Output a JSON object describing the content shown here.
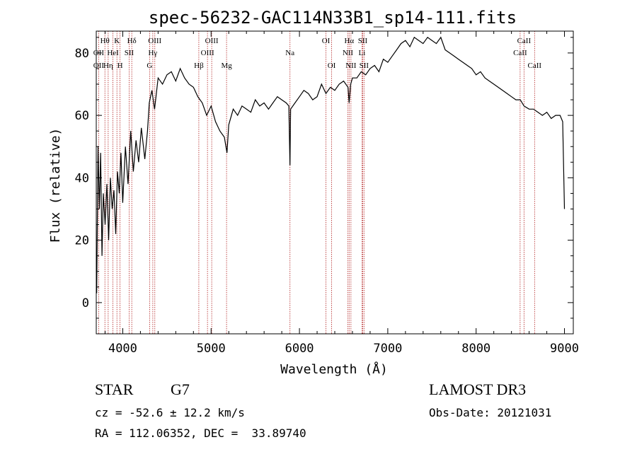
{
  "chart_data": {
    "type": "line",
    "title": "spec-56232-GAC114N33B1_sp14-111.fits",
    "xlabel": "Wavelength (Å)",
    "ylabel": "Flux (relative)",
    "xlim": [
      3700,
      9100
    ],
    "ylim": [
      -10,
      87
    ],
    "xticks": [
      4000,
      5000,
      6000,
      7000,
      8000,
      9000
    ],
    "yticks": [
      0,
      20,
      40,
      60,
      80
    ],
    "grid": false,
    "line_color": "#000000",
    "marker_color": "#b22222",
    "spectrum": {
      "x": [
        3705,
        3720,
        3735,
        3750,
        3765,
        3780,
        3800,
        3820,
        3840,
        3860,
        3880,
        3900,
        3920,
        3940,
        3960,
        3980,
        4000,
        4030,
        4060,
        4090,
        4120,
        4150,
        4180,
        4210,
        4250,
        4280,
        4300,
        4330,
        4360,
        4400,
        4450,
        4500,
        4550,
        4600,
        4650,
        4700,
        4750,
        4800,
        4850,
        4900,
        4950,
        5000,
        5050,
        5100,
        5150,
        5180,
        5200,
        5250,
        5300,
        5350,
        5400,
        5450,
        5500,
        5550,
        5600,
        5650,
        5700,
        5750,
        5800,
        5850,
        5880,
        5893,
        5900,
        5950,
        6000,
        6050,
        6100,
        6150,
        6200,
        6250,
        6300,
        6350,
        6400,
        6450,
        6500,
        6550,
        6563,
        6580,
        6600,
        6650,
        6700,
        6750,
        6800,
        6850,
        6900,
        6950,
        7000,
        7050,
        7100,
        7150,
        7200,
        7250,
        7300,
        7350,
        7400,
        7450,
        7500,
        7550,
        7600,
        7650,
        7700,
        7750,
        7800,
        7850,
        7900,
        7950,
        8000,
        8050,
        8100,
        8150,
        8200,
        8250,
        8300,
        8350,
        8400,
        8450,
        8500,
        8542,
        8600,
        8650,
        8700,
        8750,
        8800,
        8850,
        8900,
        8950,
        8980,
        9000
      ],
      "y": [
        3,
        50,
        30,
        48,
        15,
        35,
        25,
        38,
        20,
        40,
        30,
        36,
        22,
        42,
        35,
        48,
        32,
        50,
        38,
        55,
        42,
        52,
        45,
        56,
        46,
        55,
        64,
        68,
        62,
        72,
        70,
        73,
        74,
        71,
        75,
        72,
        70,
        69,
        66,
        64,
        60,
        63,
        58,
        55,
        53,
        48,
        57,
        62,
        60,
        63,
        62,
        61,
        65,
        63,
        64,
        62,
        64,
        66,
        65,
        64,
        63,
        44,
        62,
        64,
        66,
        68,
        67,
        65,
        66,
        70,
        67,
        69,
        68,
        70,
        71,
        69,
        64,
        70,
        72,
        72,
        74,
        73,
        75,
        76,
        74,
        78,
        77,
        79,
        81,
        83,
        84,
        82,
        85,
        84,
        83,
        85,
        84,
        83,
        85,
        81,
        80,
        79,
        78,
        77,
        76,
        75,
        73,
        74,
        72,
        71,
        70,
        69,
        68,
        67,
        66,
        65,
        65,
        63,
        62,
        62,
        61,
        60,
        61,
        59,
        60,
        60,
        58,
        30
      ]
    },
    "line_markers": [
      {
        "label": "Hθ",
        "x": 3798,
        "row": 1
      },
      {
        "label": "OII",
        "x": 3727,
        "row": 2
      },
      {
        "label": "OII",
        "x": 3727,
        "row": 3
      },
      {
        "label": "Hη",
        "x": 3835,
        "row": 3
      },
      {
        "label": "K",
        "x": 3934,
        "row": 1
      },
      {
        "label": "HeI",
        "x": 3889,
        "row": 2
      },
      {
        "label": "H",
        "x": 3969,
        "row": 3
      },
      {
        "label": "Hδ",
        "x": 4102,
        "row": 1
      },
      {
        "label": "SII",
        "x": 4072,
        "row": 2
      },
      {
        "label": "OIII",
        "x": 4363,
        "row": 1
      },
      {
        "label": "Hγ",
        "x": 4340,
        "row": 2
      },
      {
        "label": "G",
        "x": 4304,
        "row": 3
      },
      {
        "label": "Hβ",
        "x": 4861,
        "row": 3
      },
      {
        "label": "OIII",
        "x": 5007,
        "row": 1
      },
      {
        "label": "OIII",
        "x": 4959,
        "row": 2
      },
      {
        "label": "Mg",
        "x": 5175,
        "row": 3
      },
      {
        "label": "Na",
        "x": 5893,
        "row": 2
      },
      {
        "label": "OI",
        "x": 6300,
        "row": 1
      },
      {
        "label": "OI",
        "x": 6364,
        "row": 3
      },
      {
        "label": "Hα",
        "x": 6563,
        "row": 1
      },
      {
        "label": "NII",
        "x": 6548,
        "row": 2
      },
      {
        "label": "NII",
        "x": 6583,
        "row": 3
      },
      {
        "label": "SII",
        "x": 6716,
        "row": 1
      },
      {
        "label": "Li",
        "x": 6708,
        "row": 2
      },
      {
        "label": "SII",
        "x": 6731,
        "row": 3
      },
      {
        "label": "CaII",
        "x": 8542,
        "row": 1
      },
      {
        "label": "CaII",
        "x": 8498,
        "row": 2
      },
      {
        "label": "CaII",
        "x": 8662,
        "row": 3
      }
    ]
  },
  "info": {
    "class_label": "STAR",
    "subclass": "G7",
    "survey": "LAMOST DR3",
    "redshift": "cz = -52.6 ± 12.2 km/s",
    "obs_date": "Obs-Date: 20121031",
    "coords": "RA = 112.06352, DEC =  33.89740"
  }
}
